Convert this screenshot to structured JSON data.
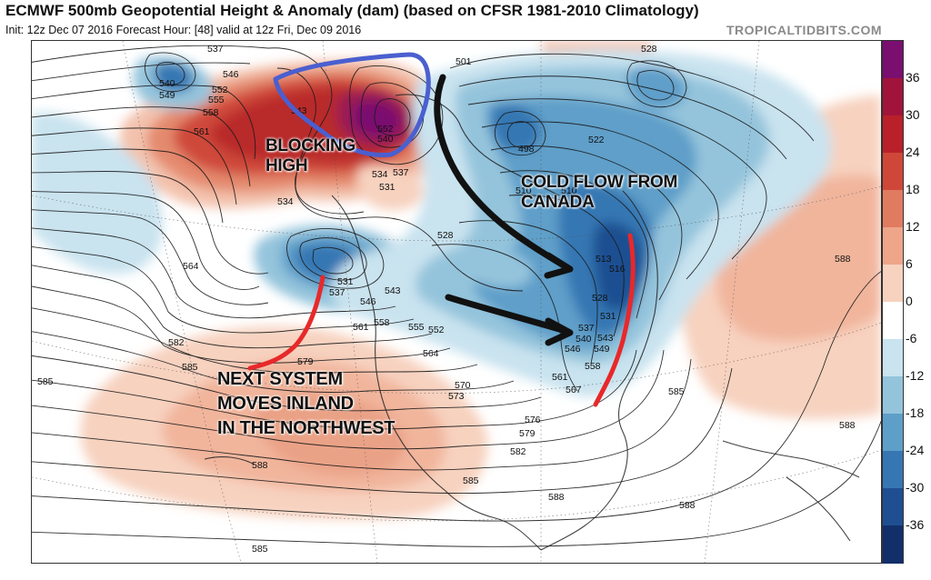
{
  "header": {
    "title": "ECMWF 500mb Geopotential Height & Anomaly (dam) (based on CFSR 1981-2010 Climatology)",
    "subtitle": "Init: 12z Dec 07 2016   Forecast Hour: [48]   valid at 12z Fri, Dec 09 2016",
    "credit": "TROPICALTIDBITS.COM"
  },
  "colorbar": {
    "ticks": [
      "36",
      "30",
      "24",
      "18",
      "12",
      "6",
      "0",
      "-6",
      "-12",
      "-18",
      "-24",
      "-30",
      "-36"
    ],
    "colors": [
      "#7a0f70",
      "#a0143c",
      "#b9202a",
      "#cf4739",
      "#e07b60",
      "#eea58a",
      "#f7d2bf",
      "#ffffff",
      "#c9e3ef",
      "#94c4dc",
      "#5e9fc9",
      "#3677b3",
      "#1f4f92",
      "#122f6a"
    ]
  },
  "map": {
    "height_labels": [
      {
        "text": "537"
      },
      {
        "text": "540"
      },
      {
        "text": "549"
      },
      {
        "text": "546"
      },
      {
        "text": "552"
      },
      {
        "text": "555"
      },
      {
        "text": "558"
      },
      {
        "text": "561"
      },
      {
        "text": "543"
      },
      {
        "text": "540"
      },
      {
        "text": "552"
      },
      {
        "text": "534"
      },
      {
        "text": "537"
      },
      {
        "text": "531"
      },
      {
        "text": "534"
      },
      {
        "text": "501"
      },
      {
        "text": "498"
      },
      {
        "text": "510"
      },
      {
        "text": "510"
      },
      {
        "text": "522"
      },
      {
        "text": "528"
      },
      {
        "text": "528"
      },
      {
        "text": "513"
      },
      {
        "text": "516"
      },
      {
        "text": "528"
      },
      {
        "text": "531"
      },
      {
        "text": "537"
      },
      {
        "text": "540"
      },
      {
        "text": "543"
      },
      {
        "text": "546"
      },
      {
        "text": "549"
      },
      {
        "text": "558"
      },
      {
        "text": "561"
      },
      {
        "text": "567"
      },
      {
        "text": "564"
      },
      {
        "text": "531"
      },
      {
        "text": "537"
      },
      {
        "text": "546"
      },
      {
        "text": "543"
      },
      {
        "text": "561"
      },
      {
        "text": "558"
      },
      {
        "text": "555"
      },
      {
        "text": "552"
      },
      {
        "text": "564"
      },
      {
        "text": "570"
      },
      {
        "text": "573"
      },
      {
        "text": "576"
      },
      {
        "text": "579"
      },
      {
        "text": "579"
      },
      {
        "text": "582"
      },
      {
        "text": "582"
      },
      {
        "text": "585"
      },
      {
        "text": "585"
      },
      {
        "text": "585"
      },
      {
        "text": "585"
      },
      {
        "text": "588"
      },
      {
        "text": "588"
      },
      {
        "text": "588"
      },
      {
        "text": "588"
      },
      {
        "text": "588"
      },
      {
        "text": "585"
      }
    ],
    "annotations": {
      "blocking_high": [
        "BLOCKING",
        "HIGH"
      ],
      "cold_flow": [
        "COLD FLOW FROM",
        "CANADA"
      ],
      "next_system": [
        "NEXT SYSTEM",
        "MOVES INLAND",
        "IN THE NORTHWEST"
      ]
    },
    "annotation_colors": {
      "blocking_high_circle": "#4a5fd0",
      "arrows": "#111111",
      "red_lines": "#e8282a"
    }
  }
}
